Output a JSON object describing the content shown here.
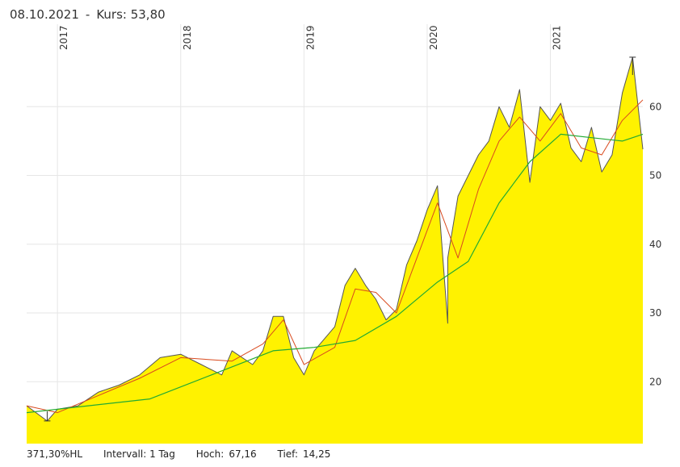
{
  "header": {
    "date": "08.10.2021",
    "separator": "-",
    "price_label": "Kurs: 53,80"
  },
  "footer": {
    "change": "371,30%HL",
    "interval_label": "Intervall: 1 Tag",
    "high_label": "Hoch:",
    "high_value": "67,16",
    "low_label": "Tief:",
    "low_value": "14,25"
  },
  "colors": {
    "area_fill": "#fff200",
    "price_line": "#555555",
    "ma_short": "#d94a1e",
    "ma_long": "#22aa33",
    "grid": "#e6e6e6"
  },
  "chart_data": {
    "type": "area",
    "title": "",
    "xlabel": "",
    "ylabel": "",
    "x_start": "2016-10",
    "x_end": "2021-10",
    "year_ticks": [
      "2017",
      "2018",
      "2019",
      "2020",
      "2021"
    ],
    "y_ticks": [
      20,
      30,
      40,
      50,
      60
    ],
    "ylim": [
      11,
      72
    ],
    "series": [
      {
        "role": "price",
        "x": [
          "2016-10",
          "2016-12",
          "2017-01",
          "2017-03",
          "2017-05",
          "2017-07",
          "2017-09",
          "2017-11",
          "2018-01",
          "2018-03",
          "2018-05",
          "2018-06",
          "2018-08",
          "2018-09",
          "2018-10",
          "2018-11",
          "2018-12",
          "2019-01",
          "2019-02",
          "2019-04",
          "2019-05",
          "2019-06",
          "2019-07",
          "2019-08",
          "2019-09",
          "2019-10",
          "2019-11",
          "2019-12",
          "2020-01",
          "2020-02",
          "2020-03",
          "2020-03",
          "2020-04",
          "2020-06",
          "2020-07",
          "2020-08",
          "2020-09",
          "2020-10",
          "2020-11",
          "2020-12",
          "2021-01",
          "2021-02",
          "2021-03",
          "2021-04",
          "2021-05",
          "2021-06",
          "2021-07",
          "2021-08",
          "2021-09",
          "2021-10"
        ],
        "y": [
          16.5,
          14.3,
          16.0,
          16.5,
          18.5,
          19.5,
          21.0,
          23.5,
          24.0,
          22.5,
          21.0,
          24.5,
          22.5,
          24.5,
          29.5,
          29.5,
          23.5,
          21.0,
          24.5,
          28.0,
          34.0,
          36.5,
          34.0,
          32.0,
          29.0,
          30.5,
          37.0,
          40.5,
          45.0,
          48.5,
          28.5,
          38.0,
          47.0,
          53.0,
          55.0,
          60.0,
          57.0,
          62.5,
          49.0,
          60.0,
          58.0,
          60.5,
          54.0,
          52.0,
          57.0,
          50.5,
          53.0,
          62.0,
          67.2,
          53.8
        ]
      },
      {
        "role": "moving-average-short",
        "x": [
          "2016-10",
          "2017-01",
          "2017-05",
          "2017-09",
          "2018-01",
          "2018-06",
          "2018-09",
          "2018-11",
          "2019-01",
          "2019-04",
          "2019-06",
          "2019-08",
          "2019-10",
          "2019-12",
          "2020-02",
          "2020-04",
          "2020-06",
          "2020-08",
          "2020-10",
          "2020-12",
          "2021-02",
          "2021-04",
          "2021-06",
          "2021-08",
          "2021-10"
        ],
        "y": [
          16.5,
          15.5,
          18.0,
          20.5,
          23.5,
          23.0,
          25.5,
          29.0,
          22.5,
          25.0,
          33.5,
          33.0,
          30.0,
          38.0,
          46.0,
          38.0,
          48.0,
          55.0,
          58.5,
          55.0,
          59.0,
          54.0,
          53.0,
          58.0,
          61.0
        ]
      },
      {
        "role": "moving-average-long",
        "x": [
          "2016-10",
          "2017-04",
          "2017-10",
          "2018-04",
          "2018-10",
          "2019-02",
          "2019-06",
          "2019-10",
          "2020-02",
          "2020-05",
          "2020-08",
          "2020-11",
          "2021-02",
          "2021-05",
          "2021-08",
          "2021-10"
        ],
        "y": [
          15.5,
          16.5,
          17.5,
          21.0,
          24.5,
          25.0,
          26.0,
          29.5,
          34.5,
          37.5,
          46.0,
          52.0,
          56.0,
          55.5,
          55.0,
          56.0
        ]
      }
    ],
    "grid": true,
    "legend": "none"
  }
}
